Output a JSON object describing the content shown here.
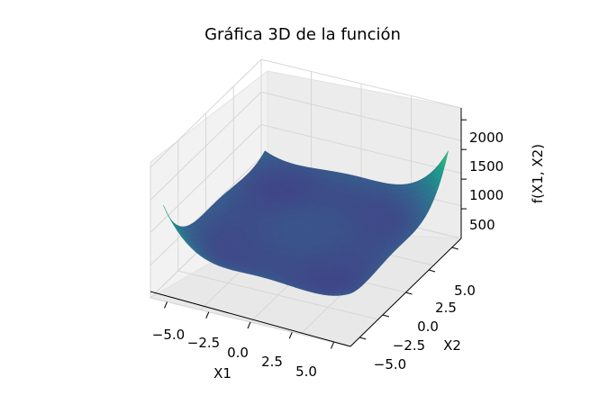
{
  "chart_data": {
    "type": "surface3d",
    "title": "Gráfica 3D de la función",
    "xlabel": "X1",
    "ylabel": "X2",
    "zlabel": "f(X1, X2)",
    "xlim": [
      -6,
      6
    ],
    "ylim": [
      -6,
      6
    ],
    "zlim": [
      0,
      2200
    ],
    "x_ticks": [
      "−5.0",
      "−2.5",
      "0.0",
      "2.5",
      "5.0"
    ],
    "y_ticks": [
      "−5.0",
      "−2.5",
      "0.0",
      "2.5",
      "5.0"
    ],
    "z_ticks": [
      "500",
      "1000",
      "1500",
      "2000"
    ],
    "colormap": "viridis",
    "colors": {
      "viridis": [
        "#440154",
        "#482878",
        "#3e4a89",
        "#31688e",
        "#26828e",
        "#1f9e89",
        "#35b779",
        "#6ece58",
        "#b5de2b",
        "#fde725"
      ],
      "pane": "#f2f2f2",
      "grid": "#d7d7d7",
      "edge": "#000000"
    }
  }
}
